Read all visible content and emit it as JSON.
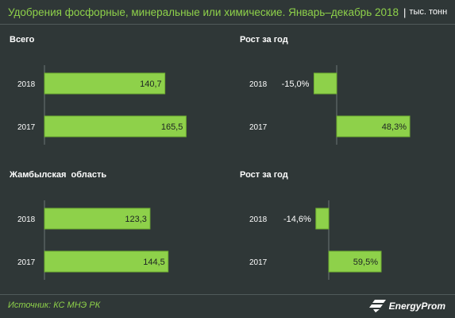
{
  "header": {
    "title": "Удобрения фосфорные, минеральные или химические. Январь–декабрь 2018",
    "separator": "|",
    "unit": "тыс. тонн"
  },
  "colors": {
    "bar": "#8ed14a",
    "bar_stroke": "#6fae32",
    "background": "#2f3737",
    "text": "#ffffff",
    "accent": "#8ed14a"
  },
  "chart_data": [
    {
      "type": "bar",
      "title": "Всего",
      "orientation": "horizontal",
      "categories": [
        "2018",
        "2017"
      ],
      "values": [
        140.7,
        165.5
      ],
      "labels": [
        "140,7",
        "165,5"
      ],
      "xlim": [
        0,
        180
      ]
    },
    {
      "type": "bar",
      "title": "Рост за год",
      "orientation": "horizontal",
      "categories": [
        "2018",
        "2017"
      ],
      "values": [
        -15.0,
        48.3
      ],
      "labels": [
        "-15,0%",
        "48,3%"
      ],
      "xlim": [
        -20,
        60
      ]
    },
    {
      "type": "bar",
      "title": "Жамбылская  область",
      "orientation": "horizontal",
      "categories": [
        "2018",
        "2017"
      ],
      "values": [
        123.3,
        144.5
      ],
      "labels": [
        "123,3",
        "144,5"
      ],
      "xlim": [
        0,
        180
      ]
    },
    {
      "type": "bar",
      "title": "Рост за год",
      "orientation": "horizontal",
      "categories": [
        "2018",
        "2017"
      ],
      "values": [
        -14.6,
        59.5
      ],
      "labels": [
        "-14,6%",
        "59,5%"
      ],
      "xlim": [
        -20,
        70
      ]
    }
  ],
  "footer": {
    "source": "Источник: КС МНЭ РК",
    "logo_text": "EnergyProm",
    "logo_icon": "energyprom-logo-icon"
  }
}
